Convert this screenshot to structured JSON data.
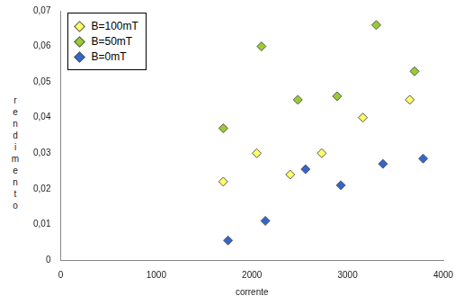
{
  "chart_data": {
    "type": "scatter",
    "x_label": "corrente",
    "y_label": "rendimento",
    "xlim": [
      0,
      4000
    ],
    "xticks": [
      0,
      1000,
      2000,
      3000,
      4000
    ],
    "ylim": [
      0,
      0.07
    ],
    "yticks": [
      0,
      {
        "value": 0.01,
        "label": "0,01"
      },
      {
        "value": 0.02,
        "label": "0,02"
      },
      {
        "value": 0.03,
        "label": "0,03"
      },
      {
        "value": 0.04,
        "label": "0,04"
      },
      {
        "value": 0.05,
        "label": "0,05"
      },
      {
        "value": 0.06,
        "label": "0,06"
      },
      {
        "value": 0.07,
        "label": "0,07"
      }
    ],
    "grid": false,
    "legend": "upper left",
    "series": [
      {
        "name": "B=100mT",
        "color": "#ffff66",
        "marker": "diamond",
        "x": [
          1700,
          2050,
          2400,
          2730,
          3160,
          3650
        ],
        "values": [
          0.022,
          0.03,
          0.024,
          0.03,
          0.04,
          0.045
        ]
      },
      {
        "name": "B=50mT",
        "color": "#99cc33",
        "marker": "diamond",
        "x": [
          1700,
          2100,
          2480,
          2890,
          3300,
          3700
        ],
        "values": [
          0.037,
          0.06,
          0.045,
          0.046,
          0.066,
          0.053
        ]
      },
      {
        "name": "B=0mT",
        "color": "#3366cc",
        "marker": "diamond",
        "x": [
          1750,
          2140,
          2560,
          2930,
          3370,
          3790
        ],
        "values": [
          0.0055,
          0.011,
          0.0255,
          0.021,
          0.027,
          0.0285
        ]
      }
    ]
  }
}
